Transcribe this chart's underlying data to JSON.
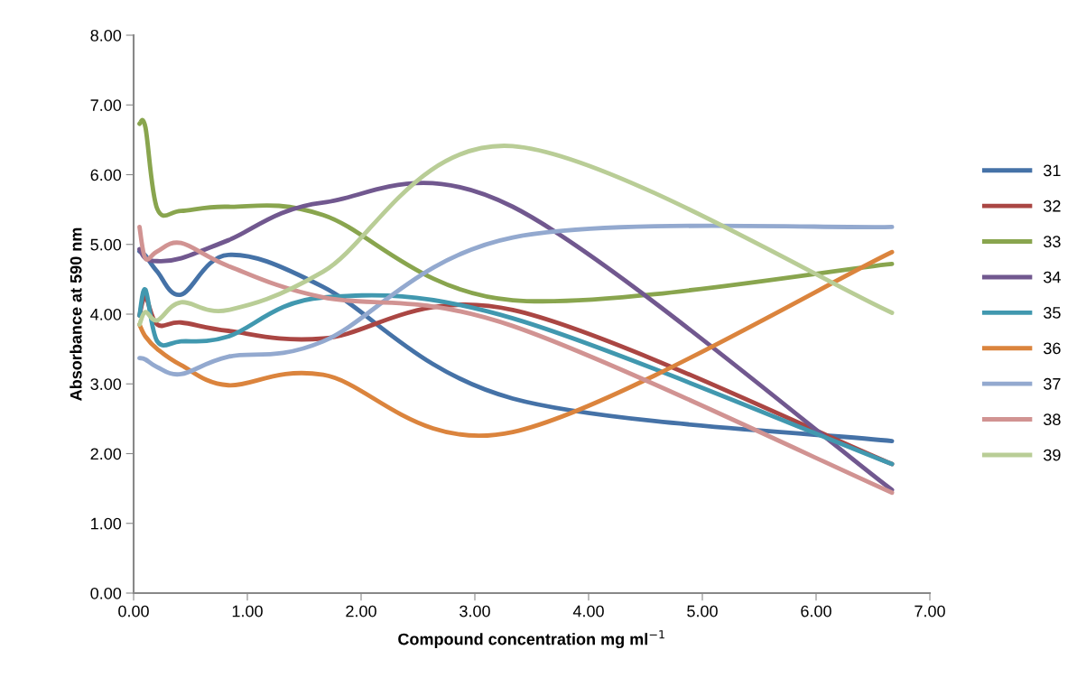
{
  "chart_data": {
    "type": "line",
    "xlabel": "Compound concentration mg ml$^{−1}$",
    "ylabel": "Absorbance at 590 nm",
    "x": [
      0.052,
      0.104,
      0.208,
      0.417,
      0.833,
      1.667,
      3.333,
      6.667
    ],
    "xlim": [
      0,
      7
    ],
    "ylim": [
      0,
      8
    ],
    "xticks": [
      {
        "value": 0,
        "label": "0.00"
      },
      {
        "value": 1,
        "label": "1.00"
      },
      {
        "value": 2,
        "label": "2.00"
      },
      {
        "value": 3,
        "label": "3.00"
      },
      {
        "value": 4,
        "label": "4.00"
      },
      {
        "value": 5,
        "label": "5.00"
      },
      {
        "value": 6,
        "label": "6.00"
      },
      {
        "value": 7,
        "label": "7.00"
      }
    ],
    "yticks": [
      {
        "value": 0,
        "label": "0.00"
      },
      {
        "value": 1,
        "label": "1.00"
      },
      {
        "value": 2,
        "label": "2.00"
      },
      {
        "value": 3,
        "label": "3.00"
      },
      {
        "value": 4,
        "label": "4.00"
      },
      {
        "value": 5,
        "label": "5.00"
      },
      {
        "value": 6,
        "label": "6.00"
      },
      {
        "value": 7,
        "label": "7.00"
      },
      {
        "value": 8,
        "label": "8.00"
      }
    ],
    "grid": false,
    "legend": "right",
    "marker": "none",
    "line_style": "solid",
    "series": [
      {
        "name": "31",
        "color": "#4572a7",
        "values": [
          4.9,
          4.84,
          4.61,
          4.28,
          4.85,
          4.39,
          2.79,
          2.18
        ]
      },
      {
        "name": "32",
        "color": "#aa4643",
        "values": [
          3.98,
          4.24,
          3.85,
          3.88,
          3.76,
          3.65,
          4.06,
          1.85
        ]
      },
      {
        "name": "33",
        "color": "#89a54e",
        "values": [
          6.73,
          6.68,
          5.51,
          5.48,
          5.54,
          5.42,
          4.2,
          4.72
        ]
      },
      {
        "name": "34",
        "color": "#71588f",
        "values": [
          4.93,
          4.8,
          4.76,
          4.8,
          5.06,
          5.6,
          5.54,
          1.48
        ]
      },
      {
        "name": "35",
        "color": "#4198af",
        "values": [
          3.98,
          4.35,
          3.61,
          3.61,
          3.68,
          4.24,
          3.94,
          1.85
        ]
      },
      {
        "name": "36",
        "color": "#db843d",
        "values": [
          3.85,
          3.68,
          3.5,
          3.27,
          2.98,
          3.13,
          2.31,
          4.89
        ]
      },
      {
        "name": "37",
        "color": "#93a9cf",
        "values": [
          3.37,
          3.35,
          3.24,
          3.14,
          3.39,
          3.61,
          5.1,
          5.25
        ]
      },
      {
        "name": "38",
        "color": "#d19392",
        "values": [
          5.25,
          4.8,
          4.9,
          5.02,
          4.69,
          4.24,
          3.83,
          1.44
        ]
      },
      {
        "name": "39",
        "color": "#b9cd96",
        "values": [
          3.85,
          4.03,
          3.91,
          4.17,
          4.06,
          4.61,
          6.41,
          4.02
        ]
      }
    ]
  }
}
